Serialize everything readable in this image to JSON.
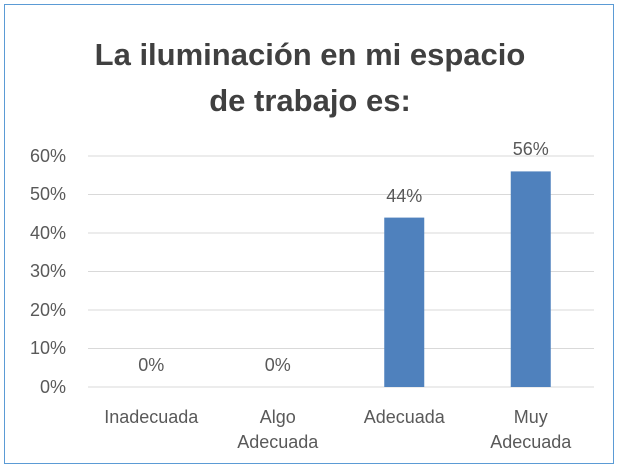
{
  "chart_data": {
    "type": "bar",
    "title": "La iluminación en mi espacio\nde trabajo es:",
    "categories": [
      "Inadecuada",
      "Algo\nAdecuada",
      "Adecuada",
      "Muy\nAdecuada"
    ],
    "values": [
      0,
      0,
      44,
      56
    ],
    "value_labels": [
      "0%",
      "0%",
      "44%",
      "56%"
    ],
    "color": "#4f81bd",
    "ylim": [
      0,
      60
    ],
    "yticks": [
      {
        "value": 0,
        "label": "0%"
      },
      {
        "value": 10,
        "label": "10%"
      },
      {
        "value": 20,
        "label": "20%"
      },
      {
        "value": 30,
        "label": "30%"
      },
      {
        "value": 40,
        "label": "40%"
      },
      {
        "value": 50,
        "label": "50%"
      },
      {
        "value": 60,
        "label": "60%"
      }
    ],
    "grid": true
  }
}
